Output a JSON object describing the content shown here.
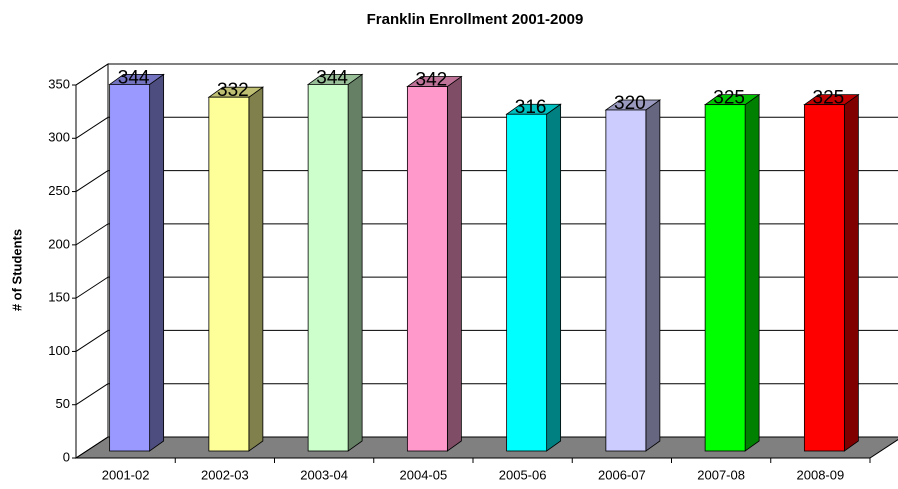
{
  "chart_data": {
    "type": "bar3d",
    "title": "Franklin Enrollment 2001-2009",
    "ylabel": "# of Students",
    "categories": [
      "2001-02",
      "2002-03",
      "2003-04",
      "2004-05",
      "2005-06",
      "2006-07",
      "2007-08",
      "2008-09"
    ],
    "values": [
      344,
      332,
      344,
      342,
      316,
      320,
      325,
      325
    ],
    "colors": [
      "#9999ff",
      "#ffff99",
      "#ccffcc",
      "#ff99cc",
      "#00ffff",
      "#ccccff",
      "#00ff00",
      "#ff0000"
    ],
    "ylim": [
      0,
      350
    ],
    "yticks": [
      0,
      50,
      100,
      150,
      200,
      250,
      300,
      350
    ],
    "grid": true
  }
}
